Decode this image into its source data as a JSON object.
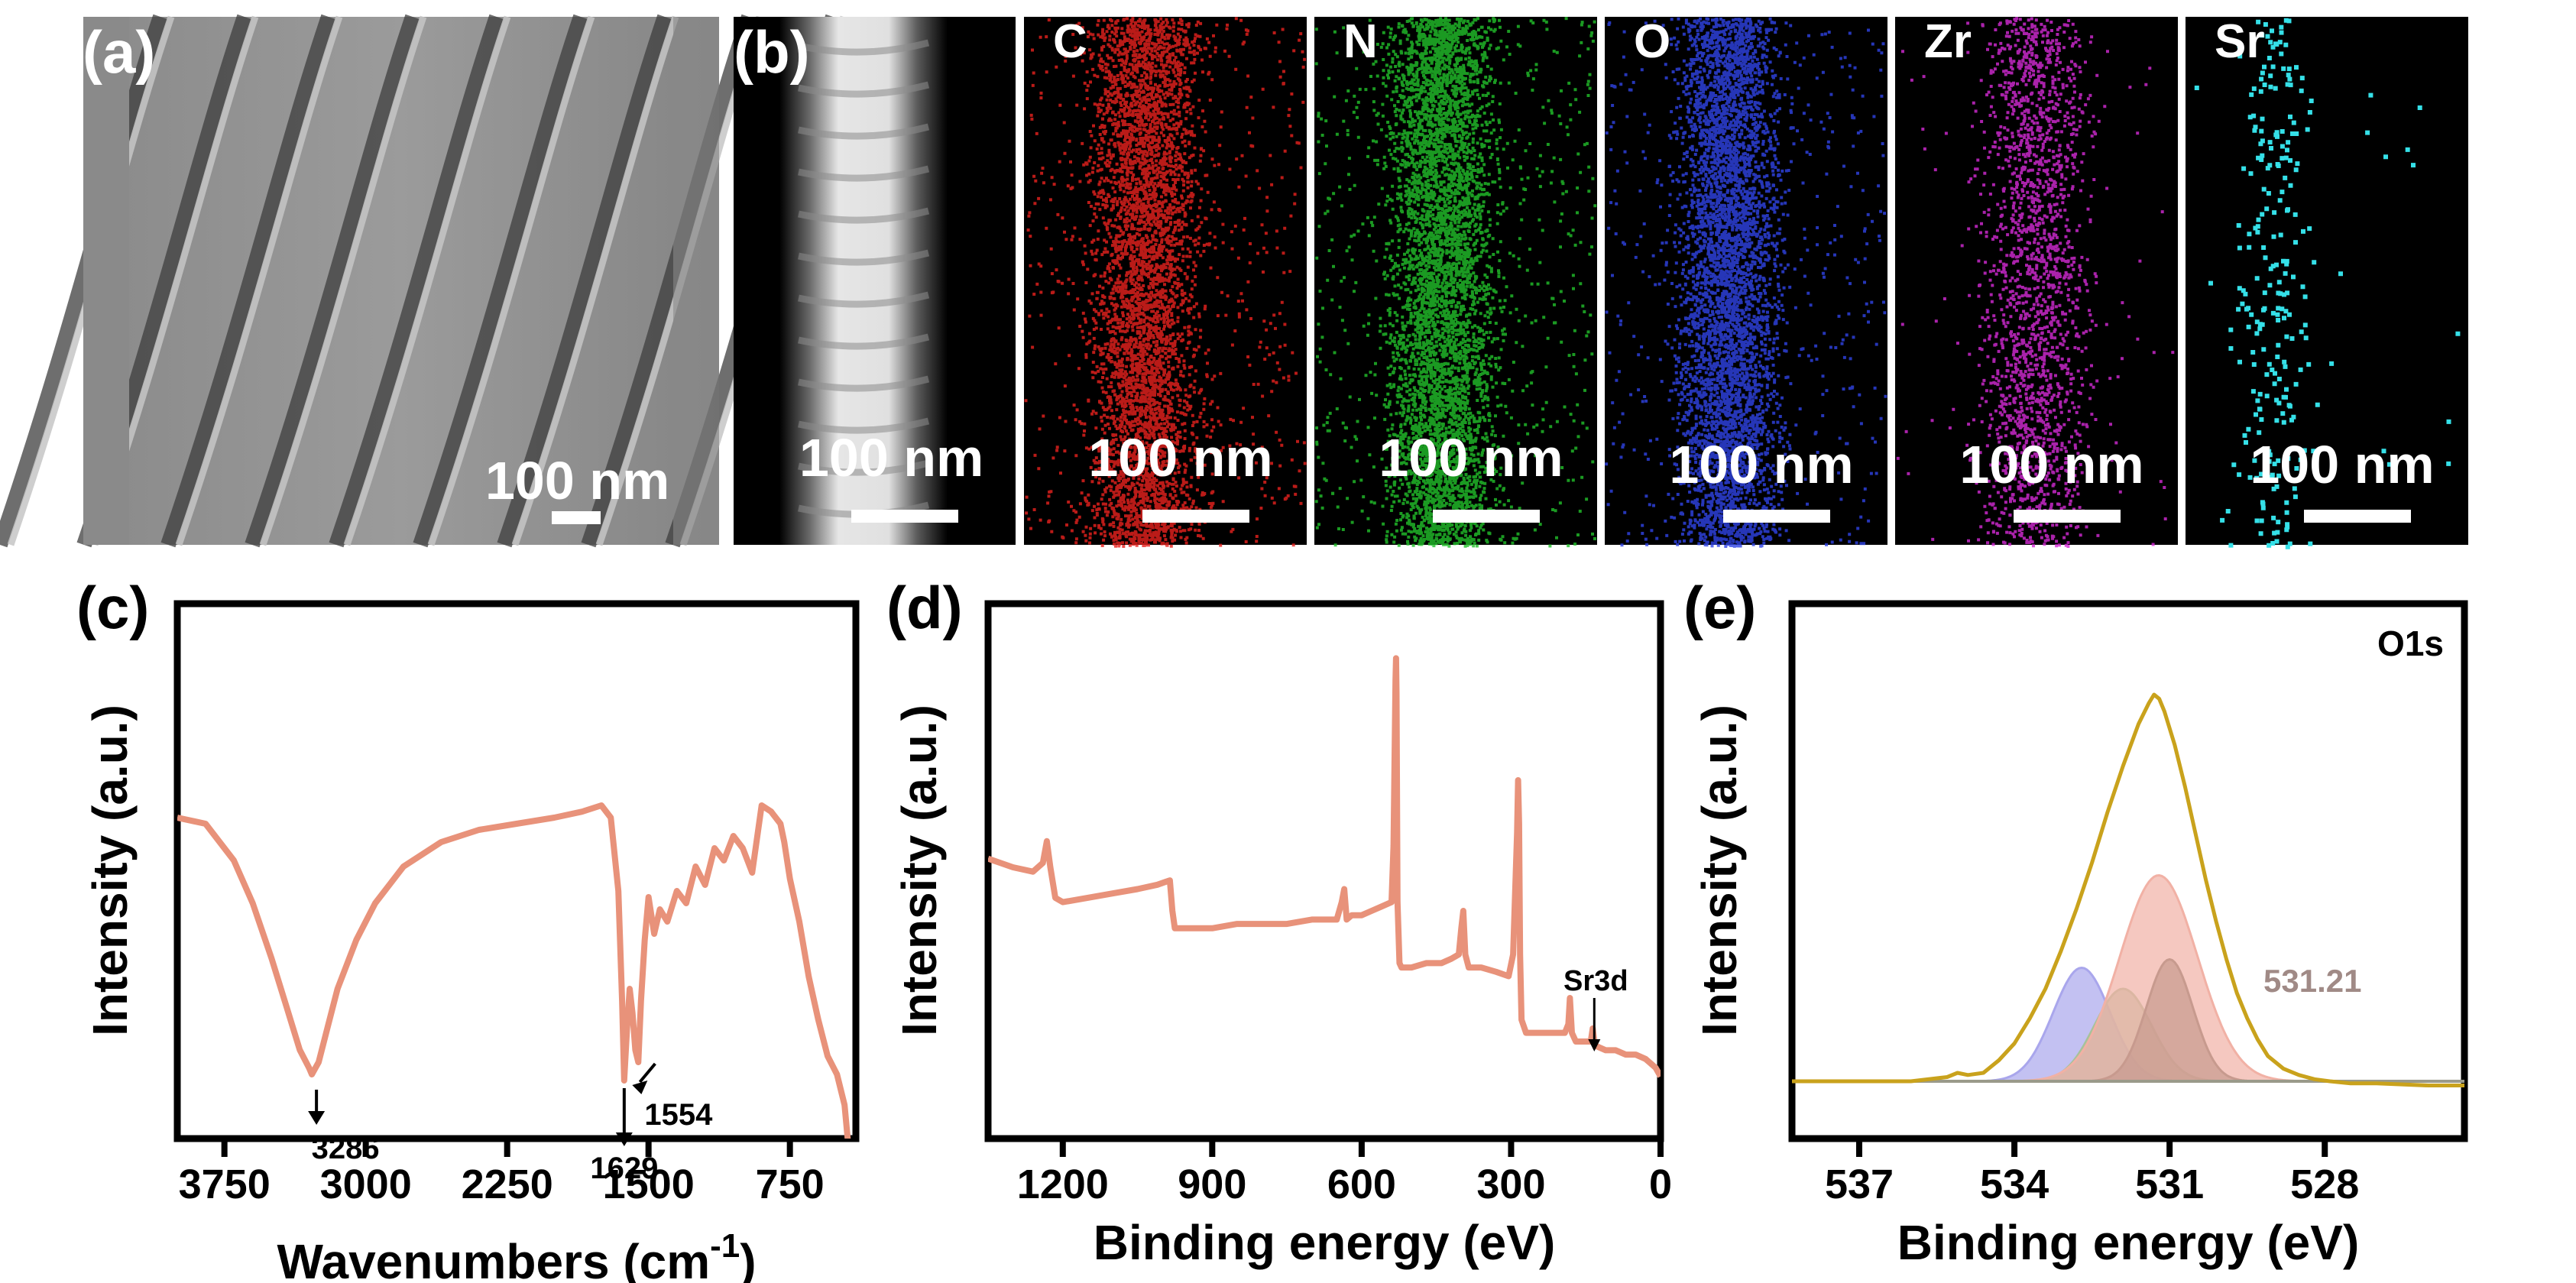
{
  "figure": {
    "panel_letters": [
      "(a)",
      "(b)",
      "(c)",
      "(d)",
      "(e)"
    ],
    "scale_bar": "100 nm",
    "eds_elements": [
      "C",
      "N",
      "O",
      "Zr",
      "Sr"
    ],
    "colors": {
      "C": "#e8221e",
      "N": "#22c02a",
      "O": "#2f44e6",
      "Zr": "#d42bd6",
      "Sr": "#35e0e8",
      "ftir_line": "#e8927a",
      "xps_line": "#e8927a",
      "envelope": "#c9a21c",
      "peak_blue": "#a9a6ec",
      "peak_green": "#a7c29a",
      "peak_salmon": "#f1b1a5",
      "peak_brown": "#c79a8e",
      "annotation": "#a08a86"
    }
  },
  "chart_data": [
    {
      "panel": "(c)",
      "type": "line",
      "xlabel": "Wavenumbers (cm",
      "xlabel_sup": "-1",
      "xlabel_close": ")",
      "ylabel": "Intensity (a.u.)",
      "xlim": [
        4000,
        400
      ],
      "x_reversed": true,
      "xticks": [
        3750,
        3000,
        2250,
        1500,
        750
      ],
      "yticks": "none",
      "series": [
        {
          "x": [
            4000,
            3850,
            3700,
            3600,
            3500,
            3420,
            3350,
            3300,
            3286,
            3250,
            3200,
            3150,
            3050,
            2950,
            2800,
            2600,
            2400,
            2200,
            2000,
            1850,
            1750,
            1700,
            1660,
            1640,
            1629,
            1615,
            1600,
            1585,
            1570,
            1554,
            1540,
            1520,
            1500,
            1470,
            1440,
            1400,
            1350,
            1300,
            1250,
            1200,
            1150,
            1100,
            1050,
            1000,
            950,
            900,
            850,
            800,
            780,
            750,
            700,
            650,
            600,
            550,
            500,
            460,
            430,
            400
          ],
          "y": [
            0.5,
            0.49,
            0.43,
            0.36,
            0.27,
            0.19,
            0.12,
            0.09,
            0.08,
            0.1,
            0.16,
            0.22,
            0.3,
            0.36,
            0.42,
            0.46,
            0.48,
            0.49,
            0.5,
            0.51,
            0.52,
            0.5,
            0.38,
            0.2,
            0.07,
            0.15,
            0.22,
            0.18,
            0.12,
            0.1,
            0.2,
            0.3,
            0.37,
            0.31,
            0.35,
            0.33,
            0.38,
            0.36,
            0.42,
            0.39,
            0.45,
            0.43,
            0.47,
            0.45,
            0.41,
            0.52,
            0.51,
            0.49,
            0.46,
            0.4,
            0.33,
            0.24,
            0.17,
            0.11,
            0.08,
            0.03,
            -0.07,
            -0.17
          ]
        }
      ],
      "annotations": [
        {
          "text": "3286",
          "x": 3286
        },
        {
          "text": "1629",
          "x": 1629
        },
        {
          "text": "1554",
          "x": 1554
        }
      ]
    },
    {
      "panel": "(d)",
      "type": "line",
      "xlabel": "Binding energy (eV)",
      "ylabel": "Intensity (a.u.)",
      "xlim": [
        1350,
        0
      ],
      "x_reversed": true,
      "xticks": [
        1200,
        900,
        600,
        300,
        0
      ],
      "yticks": "none",
      "series": [
        {
          "x": [
            1350,
            1300,
            1260,
            1240,
            1232,
            1225,
            1215,
            1200,
            1150,
            1100,
            1050,
            1010,
            985,
            980,
            975,
            965,
            950,
            900,
            850,
            800,
            750,
            700,
            650,
            640,
            635,
            630,
            620,
            600,
            580,
            560,
            540,
            536,
            532,
            531,
            530,
            528,
            524,
            520,
            500,
            470,
            440,
            420,
            405,
            400,
            396,
            392,
            385,
            360,
            330,
            305,
            296,
            288,
            286,
            284,
            282,
            279,
            270,
            250,
            220,
            200,
            192,
            185,
            182,
            178,
            170,
            155,
            140,
            136,
            133,
            130,
            110,
            90,
            70,
            50,
            30,
            20,
            10,
            0
          ],
          "y": [
            0.52,
            0.5,
            0.49,
            0.51,
            0.56,
            0.5,
            0.43,
            0.42,
            0.43,
            0.44,
            0.45,
            0.46,
            0.47,
            0.4,
            0.36,
            0.36,
            0.36,
            0.36,
            0.37,
            0.37,
            0.37,
            0.38,
            0.38,
            0.42,
            0.45,
            0.38,
            0.39,
            0.39,
            0.4,
            0.41,
            0.42,
            0.55,
            0.93,
            0.98,
            0.9,
            0.42,
            0.28,
            0.27,
            0.27,
            0.28,
            0.28,
            0.29,
            0.3,
            0.36,
            0.4,
            0.3,
            0.27,
            0.27,
            0.26,
            0.25,
            0.3,
            0.58,
            0.7,
            0.6,
            0.3,
            0.15,
            0.12,
            0.12,
            0.12,
            0.12,
            0.12,
            0.14,
            0.2,
            0.12,
            0.1,
            0.1,
            0.1,
            0.13,
            0.1,
            0.09,
            0.08,
            0.08,
            0.07,
            0.07,
            0.06,
            0.05,
            0.04,
            0.02
          ]
        }
      ],
      "annotations": [
        {
          "text": "Sr3d",
          "x": 133
        }
      ]
    },
    {
      "panel": "(e)",
      "type": "line",
      "title": "O1s",
      "xlabel": "Binding energy (eV)",
      "ylabel": "Intensity (a.u.)",
      "xlim": [
        538.3,
        525.3
      ],
      "x_reversed": true,
      "xticks": [
        537,
        534,
        531,
        528
      ],
      "yticks": "none",
      "baseline": 0.0,
      "envelope": {
        "x": [
          538.3,
          536.0,
          535.3,
          535.1,
          534.9,
          534.6,
          534.3,
          534.0,
          533.7,
          533.4,
          533.1,
          532.8,
          532.5,
          532.2,
          531.9,
          531.6,
          531.4,
          531.3,
          531.2,
          531.1,
          530.9,
          530.7,
          530.5,
          530.3,
          530.1,
          529.9,
          529.7,
          529.5,
          529.3,
          529.1,
          528.8,
          528.5,
          528.2,
          527.9,
          527.5,
          527.0,
          526.0,
          525.3
        ],
        "y": [
          0.0,
          0.0,
          0.01,
          0.02,
          0.015,
          0.02,
          0.05,
          0.09,
          0.15,
          0.22,
          0.31,
          0.41,
          0.52,
          0.64,
          0.75,
          0.85,
          0.9,
          0.92,
          0.91,
          0.88,
          0.8,
          0.7,
          0.59,
          0.48,
          0.38,
          0.29,
          0.21,
          0.15,
          0.1,
          0.06,
          0.03,
          0.015,
          0.005,
          0.0,
          -0.005,
          -0.005,
          -0.01,
          -0.01
        ]
      },
      "components": [
        {
          "center": 532.7,
          "height": 0.27,
          "sigma": 0.55,
          "color": "peak_blue"
        },
        {
          "center": 531.9,
          "height": 0.22,
          "sigma": 0.55,
          "color": "peak_green"
        },
        {
          "center": 531.21,
          "height": 0.49,
          "sigma": 0.75,
          "color": "peak_salmon"
        },
        {
          "center": 531.0,
          "height": 0.29,
          "sigma": 0.45,
          "color": "peak_brown"
        }
      ],
      "annotations": [
        {
          "text": "531.21",
          "x": 531.21
        }
      ]
    }
  ]
}
